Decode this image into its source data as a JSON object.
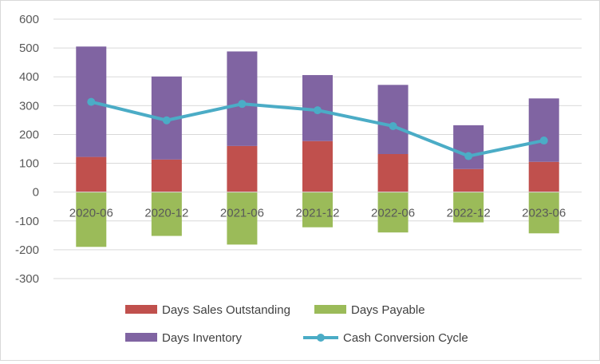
{
  "chart_data": {
    "type": "bar",
    "stacked": true,
    "categories": [
      "2020-06",
      "2020-12",
      "2021-06",
      "2021-12",
      "2022-06",
      "2022-12",
      "2023-06"
    ],
    "ylim": [
      -300,
      600
    ],
    "yticks": [
      -300,
      -200,
      -100,
      0,
      100,
      200,
      300,
      400,
      500,
      600
    ],
    "gridlines": true,
    "legend_position": "bottom",
    "series": [
      {
        "name": "Days Sales Outstanding",
        "kind": "bar",
        "color": "#c0504d",
        "values": [
          122,
          113,
          160,
          177,
          132,
          80,
          105
        ]
      },
      {
        "name": "Days Payable",
        "kind": "bar",
        "color": "#9bbb59",
        "values": [
          -190,
          -152,
          -182,
          -122,
          -140,
          -105,
          -143
        ]
      },
      {
        "name": "Days Inventory",
        "kind": "bar",
        "color": "#8064a2",
        "values": [
          383,
          288,
          328,
          229,
          240,
          152,
          220
        ]
      },
      {
        "name": "Cash Conversion Cycle",
        "kind": "line",
        "color": "#4bacc6",
        "values": [
          313,
          249,
          306,
          284,
          229,
          125,
          179
        ]
      }
    ]
  }
}
